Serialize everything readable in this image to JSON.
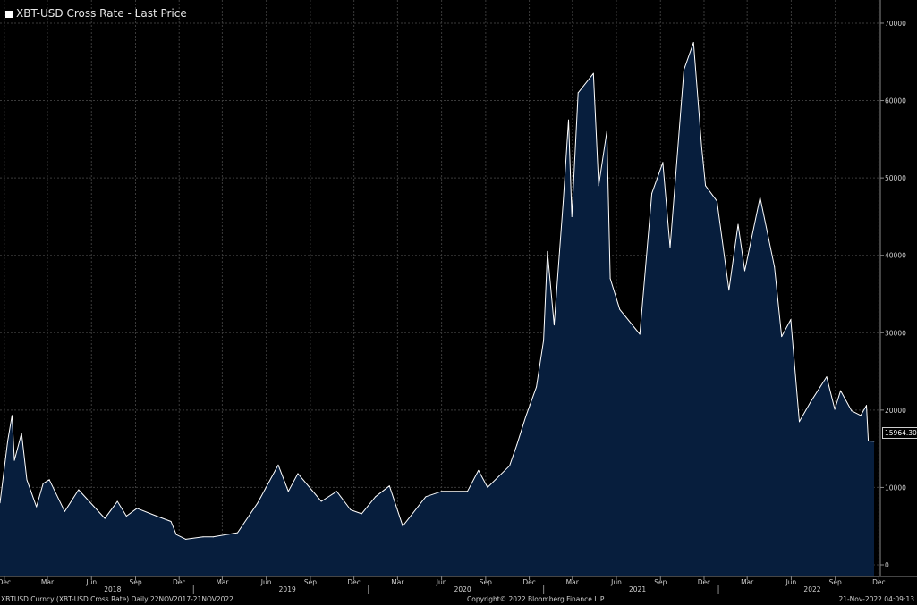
{
  "legend": {
    "label": "XBT-USD Cross Rate - Last Price"
  },
  "last_value_label": "15964.30",
  "footer": {
    "left": "XBTUSD Curncy (XBT-USD Cross Rate)  Daily 22NOV2017-21NOV2022",
    "center": "Copyright© 2022 Bloomberg Finance L.P.",
    "right": "21-Nov-2022 04:09:13"
  },
  "colors": {
    "background": "#000000",
    "area_fill": "#071e3d",
    "line": "#ffffff",
    "grid": "#3a3a3a"
  },
  "chart_data": {
    "type": "area",
    "title": "XBT-USD Cross Rate - Last Price",
    "ylim": [
      -1500,
      73000
    ],
    "y_ticks": [
      0,
      10000,
      20000,
      30000,
      40000,
      50000,
      60000,
      70000
    ],
    "y_tick_labels": [
      "0",
      "10000",
      "20000",
      "30000",
      "40000",
      "50000",
      "60000",
      "70000"
    ],
    "x_tick_labels": [
      "Dec",
      "Mar",
      "Jun",
      "Sep",
      "Dec",
      "Mar",
      "Jun",
      "Sep",
      "Dec",
      "Mar",
      "Jun",
      "Sep",
      "Dec",
      "Mar",
      "Jun",
      "Sep",
      "Dec",
      "Mar",
      "Jun",
      "Sep",
      "Dec"
    ],
    "x_tick_dates": [
      "2017-12-01",
      "2018-03-01",
      "2018-06-01",
      "2018-09-01",
      "2018-12-01",
      "2019-03-01",
      "2019-06-01",
      "2019-09-01",
      "2019-12-01",
      "2020-03-01",
      "2020-06-01",
      "2020-09-01",
      "2020-12-01",
      "2021-03-01",
      "2021-06-01",
      "2021-09-01",
      "2021-12-01",
      "2022-03-01",
      "2022-06-01",
      "2022-09-01",
      "2022-12-01"
    ],
    "year_labels": [
      "2018",
      "2019",
      "2020",
      "2021",
      "2022"
    ],
    "year_label_dates": [
      "2018-07-15",
      "2019-07-15",
      "2020-07-15",
      "2021-07-15",
      "2022-07-15"
    ],
    "grid": true,
    "series": [
      {
        "x": [
          "2017-11-22",
          "2017-12-08",
          "2017-12-17",
          "2017-12-22",
          "2018-01-06",
          "2018-01-17",
          "2018-02-06",
          "2018-02-20",
          "2018-03-05",
          "2018-04-06",
          "2018-05-05",
          "2018-06-29",
          "2018-07-25",
          "2018-08-13",
          "2018-09-04",
          "2018-10-15",
          "2018-11-14",
          "2018-11-25",
          "2018-12-15",
          "2019-01-20",
          "2019-02-10",
          "2019-04-02",
          "2019-05-14",
          "2019-06-26",
          "2019-07-17",
          "2019-08-06",
          "2019-09-24",
          "2019-10-26",
          "2019-11-24",
          "2019-12-17",
          "2020-01-15",
          "2020-02-13",
          "2020-03-12",
          "2020-04-29",
          "2020-06-01",
          "2020-07-25",
          "2020-08-17",
          "2020-09-05",
          "2020-10-21",
          "2020-11-05",
          "2020-11-24",
          "2020-12-16",
          "2020-12-31",
          "2021-01-08",
          "2021-01-22",
          "2021-02-10",
          "2021-02-21",
          "2021-02-28",
          "2021-03-13",
          "2021-04-14",
          "2021-04-25",
          "2021-05-12",
          "2021-05-19",
          "2021-06-08",
          "2021-07-20",
          "2021-08-14",
          "2021-09-06",
          "2021-09-21",
          "2021-10-20",
          "2021-11-09",
          "2021-11-26",
          "2021-12-04",
          "2021-12-28",
          "2022-01-22",
          "2022-02-10",
          "2022-02-24",
          "2022-03-28",
          "2022-04-27",
          "2022-05-12",
          "2022-05-31",
          "2022-06-18",
          "2022-07-11",
          "2022-08-14",
          "2022-08-31",
          "2022-09-12",
          "2022-10-05",
          "2022-10-24",
          "2022-11-05",
          "2022-11-09",
          "2022-11-21"
        ],
        "y": [
          8000,
          16000,
          19300,
          13500,
          17000,
          11000,
          7500,
          10500,
          11000,
          6900,
          9700,
          6000,
          8200,
          6300,
          7300,
          6300,
          5600,
          3900,
          3300,
          3600,
          3600,
          4150,
          8000,
          12900,
          9500,
          11800,
          8200,
          9500,
          7100,
          6600,
          8800,
          10200,
          5000,
          8800,
          9500,
          9500,
          12200,
          10000,
          12800,
          15500,
          19200,
          23000,
          29000,
          40500,
          31000,
          47000,
          57500,
          45000,
          61000,
          63500,
          49000,
          56000,
          37000,
          33000,
          29800,
          48000,
          52000,
          41000,
          64000,
          67500,
          54000,
          49000,
          47000,
          35500,
          44000,
          38000,
          47500,
          38500,
          29500,
          31700,
          18500,
          21000,
          24300,
          20100,
          22500,
          19900,
          19300,
          20600,
          16000,
          15964.3
        ]
      }
    ]
  }
}
